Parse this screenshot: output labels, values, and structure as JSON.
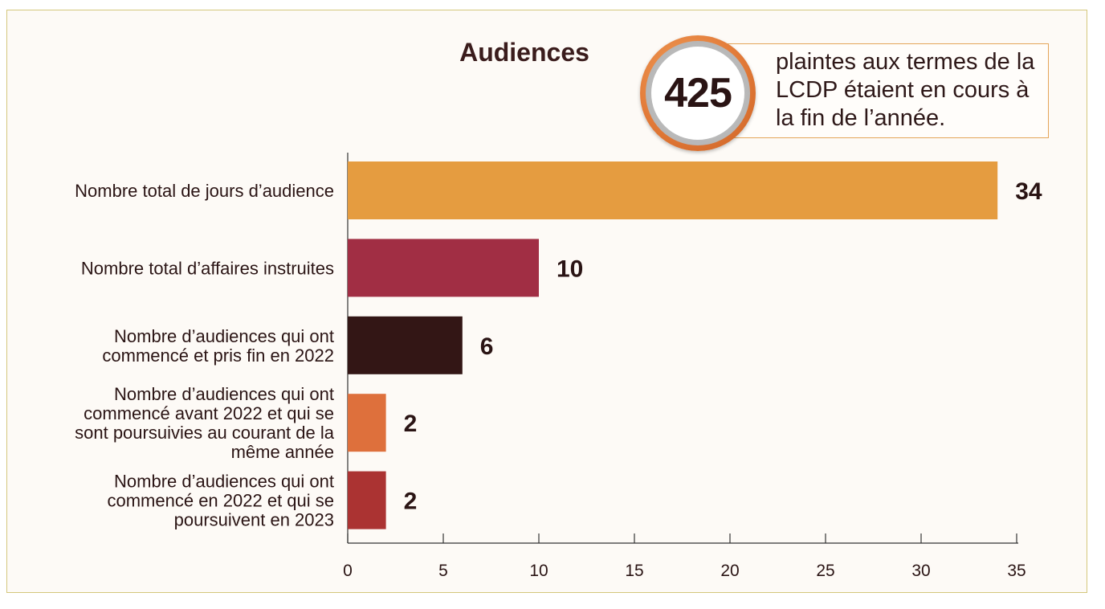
{
  "chart_data": {
    "type": "bar",
    "orientation": "horizontal",
    "title": "Audiences",
    "categories": [
      "Nombre total de jours d’audience",
      "Nombre total d’affaires instruites",
      "Nombre d’audiences qui ont commencé et pris fin en 2022",
      "Nombre d’audiences qui ont commencé avant 2022 et qui se sont poursuivies au courant de la même année",
      "Nombre d’audiences qui ont commencé en 2022 et qui se poursuivent en 2023"
    ],
    "category_lines": [
      [
        "Nombre total de jours d’audience"
      ],
      [
        "Nombre total d’affaires instruites"
      ],
      [
        "Nombre d’audiences qui ont",
        "commencé et pris fin en 2022"
      ],
      [
        "Nombre d’audiences qui ont",
        "commencé avant 2022 et qui se",
        "sont poursuivies au courant de la",
        "même année"
      ],
      [
        "Nombre d’audiences qui ont",
        "commencé en 2022 et qui se",
        "poursuivent en 2023"
      ]
    ],
    "values": [
      34,
      10,
      6,
      2,
      2
    ],
    "value_labels": [
      "34",
      "10",
      "6",
      "2",
      "2"
    ],
    "colors": [
      "#e59c40",
      "#a12e44",
      "#331615",
      "#de703c",
      "#ab3332"
    ],
    "xlim": [
      0,
      35
    ],
    "xticks": [
      0,
      5,
      10,
      15,
      20,
      25,
      30,
      35
    ],
    "xlabel": "",
    "ylabel": "",
    "grid": false
  },
  "callout": {
    "number": "425",
    "text": "plaintes aux termes de la LCDP étaient en cours à la fin de l’année."
  }
}
